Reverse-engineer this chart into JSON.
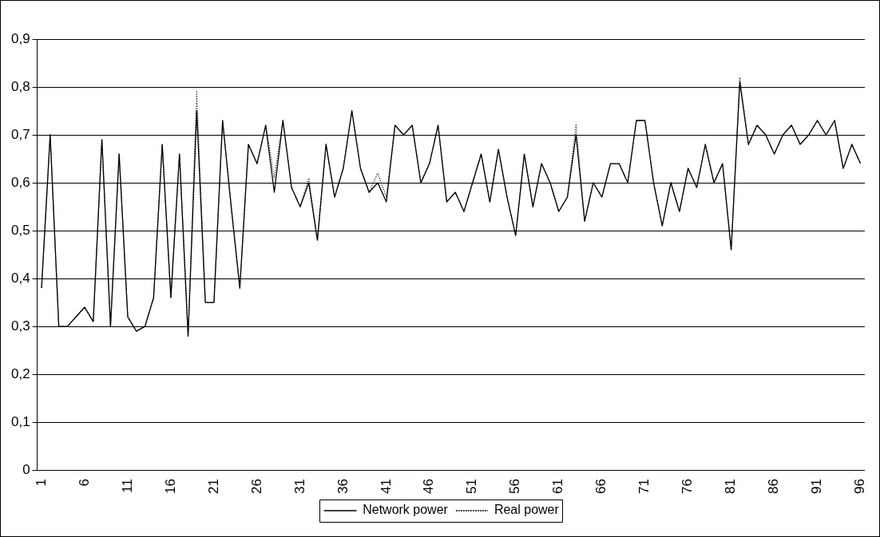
{
  "chart_data": {
    "type": "line",
    "categories": [
      "1",
      null,
      null,
      null,
      null,
      "6",
      null,
      null,
      null,
      null,
      "11",
      null,
      null,
      null,
      null,
      "16",
      null,
      null,
      null,
      null,
      "21",
      null,
      null,
      null,
      null,
      "26",
      null,
      null,
      null,
      null,
      "31",
      null,
      null,
      null,
      null,
      "36",
      null,
      null,
      null,
      null,
      "41",
      null,
      null,
      null,
      null,
      "46",
      null,
      null,
      null,
      null,
      "51",
      null,
      null,
      null,
      null,
      "56",
      null,
      null,
      null,
      null,
      "61",
      null,
      null,
      null,
      null,
      "66",
      null,
      null,
      null,
      null,
      "71",
      null,
      null,
      null,
      null,
      "76",
      null,
      null,
      null,
      null,
      "81",
      null,
      null,
      null,
      null,
      "86",
      null,
      null,
      null,
      null,
      "91",
      null,
      null,
      null,
      null,
      "96"
    ],
    "series": [
      {
        "name": "Network power",
        "color": "#000000",
        "line_style": "solid",
        "values": [
          0.38,
          0.7,
          0.3,
          0.3,
          0.32,
          0.34,
          0.31,
          0.69,
          0.3,
          0.66,
          0.32,
          0.29,
          0.3,
          0.36,
          0.68,
          0.36,
          0.66,
          0.28,
          0.75,
          0.35,
          0.35,
          0.73,
          0.55,
          0.38,
          0.68,
          0.64,
          0.72,
          0.58,
          0.73,
          0.59,
          0.55,
          0.6,
          0.48,
          0.68,
          0.57,
          0.63,
          0.75,
          0.63,
          0.58,
          0.6,
          0.56,
          0.72,
          0.7,
          0.72,
          0.6,
          0.64,
          0.72,
          0.56,
          0.58,
          0.54,
          0.6,
          0.66,
          0.56,
          0.67,
          0.57,
          0.49,
          0.66,
          0.55,
          0.64,
          0.6,
          0.54,
          0.57,
          0.7,
          0.52,
          0.6,
          0.57,
          0.64,
          0.64,
          0.6,
          0.73,
          0.73,
          0.6,
          0.51,
          0.6,
          0.54,
          0.63,
          0.59,
          0.68,
          0.6,
          0.64,
          0.46,
          0.81,
          0.68,
          0.72,
          0.7,
          0.66,
          0.7,
          0.72,
          0.68,
          0.7,
          0.73,
          0.7,
          0.73,
          0.63,
          0.68,
          0.64
        ]
      },
      {
        "name": "Real power",
        "color": "#000000",
        "line_style": "dotted",
        "values": [
          0.38,
          0.7,
          0.3,
          0.3,
          0.32,
          0.34,
          0.31,
          0.69,
          0.3,
          0.66,
          0.32,
          0.29,
          0.3,
          0.36,
          0.68,
          0.36,
          0.66,
          0.28,
          0.79,
          0.35,
          0.35,
          0.73,
          0.55,
          0.38,
          0.68,
          0.64,
          0.72,
          0.61,
          0.73,
          0.59,
          0.55,
          0.61,
          0.48,
          0.68,
          0.57,
          0.63,
          0.75,
          0.63,
          0.58,
          0.62,
          0.57,
          0.72,
          0.7,
          0.72,
          0.6,
          0.64,
          0.72,
          0.56,
          0.58,
          0.54,
          0.6,
          0.66,
          0.56,
          0.67,
          0.57,
          0.49,
          0.66,
          0.55,
          0.64,
          0.6,
          0.54,
          0.57,
          0.72,
          0.52,
          0.6,
          0.57,
          0.64,
          0.64,
          0.6,
          0.73,
          0.73,
          0.6,
          0.51,
          0.6,
          0.54,
          0.63,
          0.59,
          0.68,
          0.6,
          0.64,
          0.46,
          0.82,
          0.68,
          0.72,
          0.7,
          0.66,
          0.7,
          0.72,
          0.68,
          0.7,
          0.73,
          0.7,
          0.73,
          0.63,
          0.68,
          0.64
        ]
      }
    ],
    "ylim": [
      0,
      0.9
    ],
    "yticks": [
      {
        "value": 0,
        "label": "0"
      },
      {
        "value": 0.1,
        "label": "0,1"
      },
      {
        "value": 0.2,
        "label": "0,2"
      },
      {
        "value": 0.3,
        "label": "0,3"
      },
      {
        "value": 0.4,
        "label": "0,4"
      },
      {
        "value": 0.5,
        "label": "0,5"
      },
      {
        "value": 0.6,
        "label": "0,6"
      },
      {
        "value": 0.7,
        "label": "0,7"
      },
      {
        "value": 0.8,
        "label": "0,8"
      },
      {
        "value": 0.9,
        "label": "0,9"
      }
    ],
    "grid": "y",
    "legend": "bottom",
    "marker": "none"
  }
}
